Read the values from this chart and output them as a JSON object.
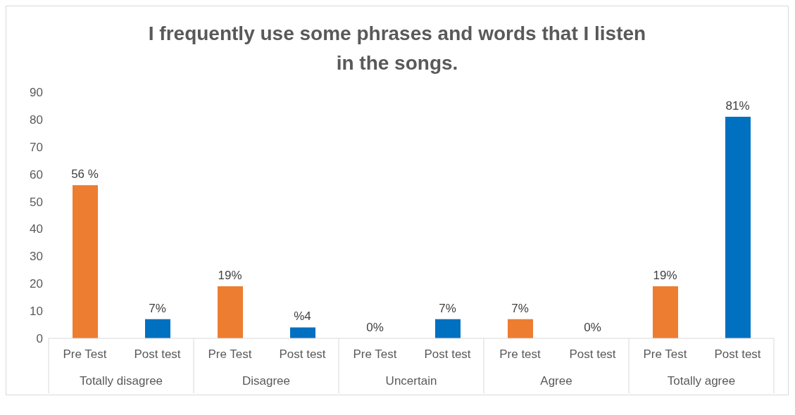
{
  "chart_data": {
    "type": "bar",
    "title": "I frequently use some phrases and words that I listen\nin the songs.",
    "categories": [
      "Pre Test",
      "Post test",
      "Pre Test",
      "Post test",
      "Pre Test",
      "Post test",
      "Pre test",
      "Post test",
      "Pre Test",
      "Post test"
    ],
    "values": [
      56,
      7,
      19,
      4,
      0,
      7,
      7,
      0,
      19,
      81
    ],
    "value_labels": [
      "56 %",
      "7%",
      "19%",
      "%4",
      "0%",
      "7%",
      "7%",
      "0%",
      "19%",
      "81%"
    ],
    "colors": [
      "#ed7d31",
      "#0070c0",
      "#ed7d31",
      "#0070c0",
      "#ed7d31",
      "#0070c0",
      "#ed7d31",
      "#0070c0",
      "#ed7d31",
      "#0070c0"
    ],
    "annotations": [
      "Totally disagree",
      "Disagree",
      "Uncertain",
      "Agree",
      "Totally agree"
    ],
    "ylim": [
      0,
      90
    ],
    "yticks": [
      0,
      10,
      20,
      30,
      40,
      50,
      60,
      70,
      80,
      90
    ],
    "grid": false
  }
}
